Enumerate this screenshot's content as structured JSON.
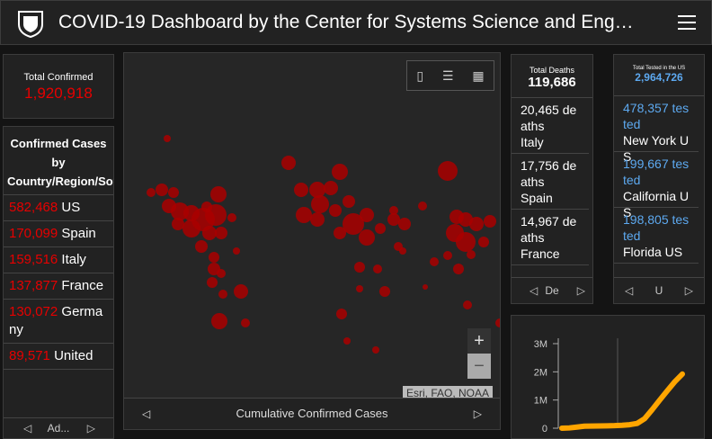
{
  "header": {
    "title": "COVID-19 Dashboard by the Center for Systems Science and Eng…"
  },
  "total_confirmed": {
    "label": "Total Confirmed",
    "value": "1,920,918"
  },
  "confirmed_list": {
    "title": "Confirmed Cases by Country/Region/Sovereignty",
    "items": [
      {
        "value": "582,468",
        "name": "US"
      },
      {
        "value": "170,099",
        "name": "Spain"
      },
      {
        "value": "159,516",
        "name": "Italy"
      },
      {
        "value": "137,877",
        "name": "France"
      },
      {
        "value": "130,072",
        "name": "Germany"
      },
      {
        "value": "89,571",
        "name": "United"
      }
    ],
    "tab": "Ad..."
  },
  "map": {
    "attribution": "Esri, FAO, NOAA",
    "caption": "Cumulative Confirmed Cases",
    "zoom_in": "+",
    "zoom_out": "−"
  },
  "deaths": {
    "label": "Total Deaths",
    "value": "119,686",
    "items": [
      {
        "value": "20,465",
        "unit": "deaths",
        "name": "Italy"
      },
      {
        "value": "17,756",
        "unit": "deaths",
        "name": "Spain"
      },
      {
        "value": "14,967",
        "unit": "deaths",
        "name": "France"
      }
    ],
    "tab": "De"
  },
  "tested": {
    "label": "Total Tested in the US",
    "value": "2,964,726",
    "items": [
      {
        "value": "478,357",
        "unit": "tested",
        "name": "New York US"
      },
      {
        "value": "199,667",
        "unit": "tested",
        "name": "California US"
      },
      {
        "value": "198,805",
        "unit": "tested",
        "name": "Florida US"
      }
    ],
    "tab": "U"
  },
  "chart": {
    "type": "line",
    "series": [
      {
        "color": "#ffa500",
        "values": [
          555,
          9927,
          40000,
          71000,
          77000,
          79000,
          85000,
          92000,
          105000,
          125000,
          170000,
          340000,
          660000,
          1000000,
          1330000,
          1650000,
          1920918
        ]
      }
    ],
    "ylim": [
      0,
      3000000
    ],
    "yticks": [
      0,
      {
        "value": 1000000,
        "label": "1M"
      },
      {
        "value": 2000000,
        "label": "2M"
      },
      {
        "value": 3000000,
        "label": "3M"
      }
    ]
  }
}
